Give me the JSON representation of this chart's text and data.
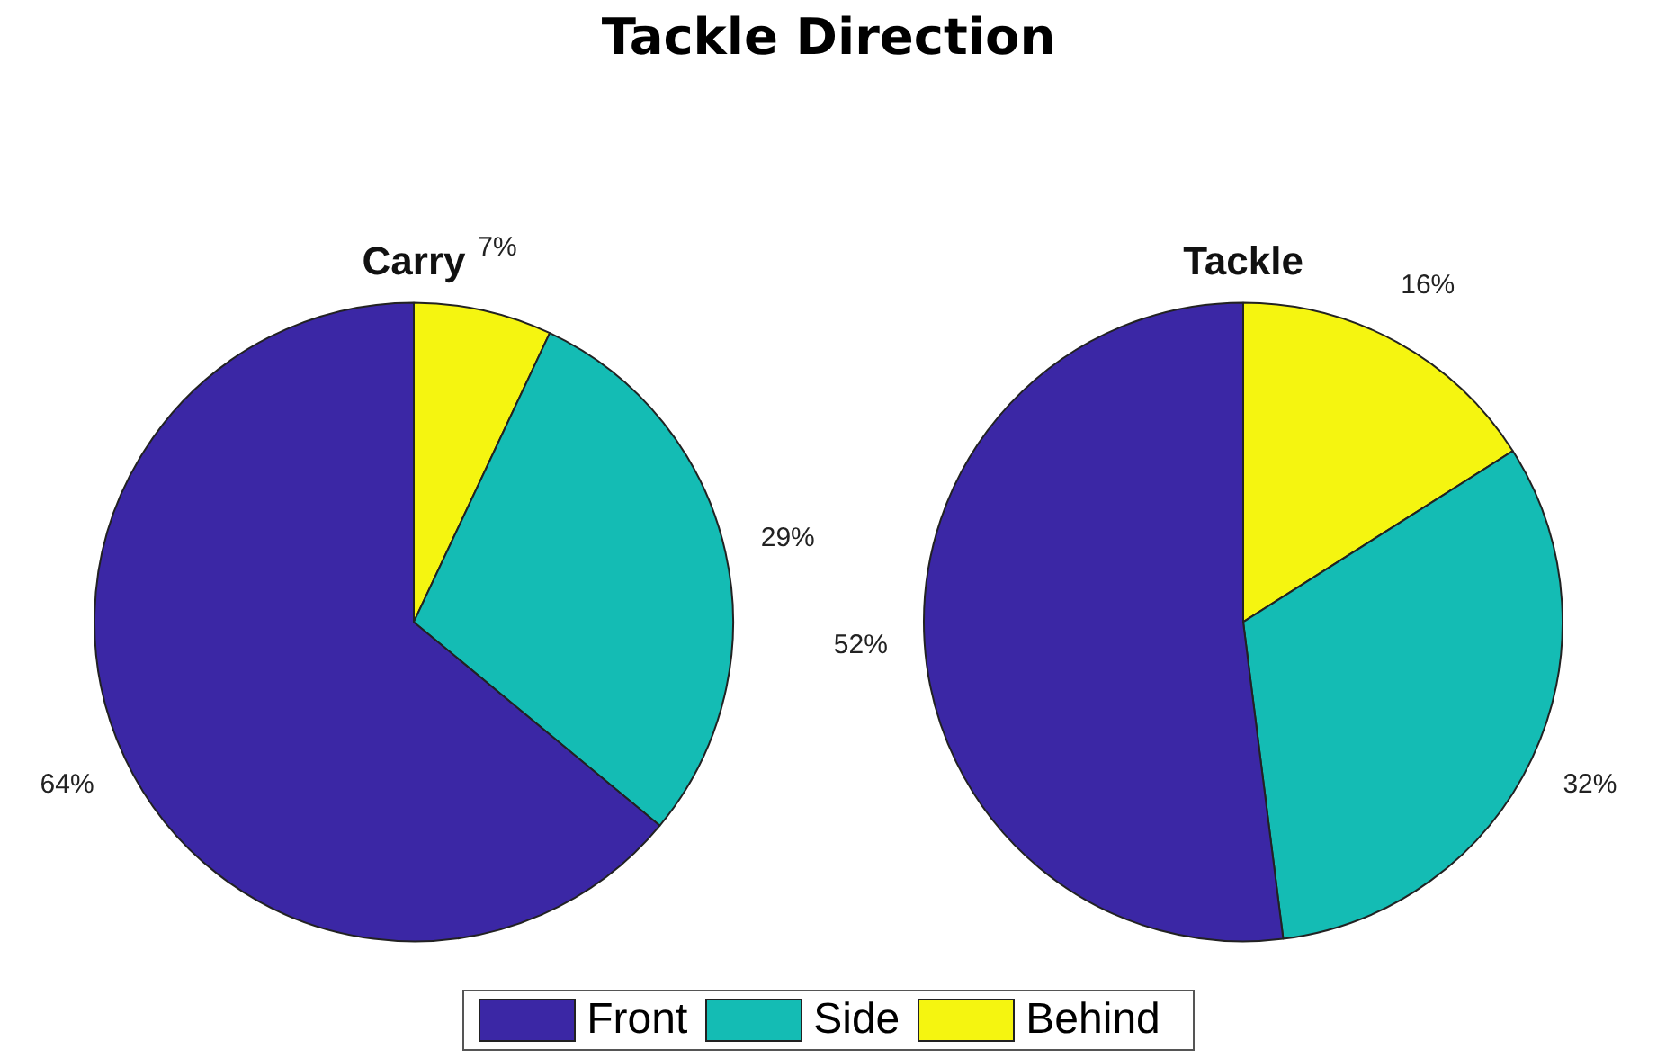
{
  "chart_data": [
    {
      "type": "other",
      "title": "Tackle Direction"
    },
    {
      "type": "pie",
      "title": "Carry",
      "categories": [
        "Front",
        "Side",
        "Behind"
      ],
      "values": [
        64,
        29,
        7
      ],
      "value_labels": [
        "64%",
        "29%",
        "7%"
      ],
      "colors": [
        "#3b27a5",
        "#14bcb4",
        "#f5f510"
      ],
      "legend": "bottom"
    },
    {
      "type": "pie",
      "title": "Tackle",
      "values": [
        52,
        32,
        16
      ],
      "value_labels": [
        "52%",
        "32%",
        "16%"
      ],
      "colors": [
        "#3b27a5",
        "#14bcb4",
        "#f5f510"
      ]
    }
  ]
}
